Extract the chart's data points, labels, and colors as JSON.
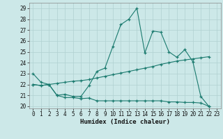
{
  "title": "",
  "xlabel": "Humidex (Indice chaleur)",
  "ylabel": "",
  "xlim": [
    -0.5,
    23.5
  ],
  "ylim": [
    19.8,
    29.5
  ],
  "yticks": [
    20,
    21,
    22,
    23,
    24,
    25,
    26,
    27,
    28,
    29
  ],
  "xticks": [
    0,
    1,
    2,
    3,
    4,
    5,
    6,
    7,
    8,
    9,
    10,
    11,
    12,
    13,
    14,
    15,
    16,
    17,
    18,
    19,
    20,
    21,
    22,
    23
  ],
  "bg_color": "#cce8e8",
  "line_color": "#1a7a6e",
  "grid_color": "#b0d0d0",
  "line1_x": [
    0,
    1,
    2,
    3,
    4,
    5,
    6,
    7,
    8,
    9,
    10,
    11,
    12,
    13,
    14,
    15,
    16,
    17,
    18,
    19,
    20,
    21,
    22
  ],
  "line1_y": [
    23.0,
    22.2,
    22.0,
    21.0,
    21.1,
    20.9,
    20.9,
    21.9,
    23.2,
    23.5,
    25.5,
    27.5,
    28.0,
    29.0,
    24.9,
    26.9,
    26.8,
    25.0,
    24.5,
    25.2,
    24.1,
    20.9,
    20.0
  ],
  "line2_x": [
    0,
    1,
    2,
    3,
    4,
    5,
    6,
    7,
    8,
    9,
    10,
    11,
    12,
    13,
    14,
    15,
    16,
    17,
    18,
    19,
    20,
    21,
    22
  ],
  "line2_y": [
    22.0,
    21.9,
    22.0,
    22.1,
    22.2,
    22.3,
    22.35,
    22.45,
    22.6,
    22.75,
    22.9,
    23.05,
    23.2,
    23.35,
    23.5,
    23.65,
    23.85,
    24.0,
    24.15,
    24.25,
    24.35,
    24.45,
    24.55
  ],
  "line3_x": [
    0,
    1,
    2,
    3,
    4,
    5,
    6,
    7,
    8,
    9,
    10,
    11,
    12,
    13,
    14,
    15,
    16,
    17,
    18,
    19,
    20,
    21,
    22
  ],
  "line3_y": [
    22.0,
    21.9,
    22.0,
    21.0,
    20.8,
    20.8,
    20.7,
    20.75,
    20.5,
    20.5,
    20.5,
    20.5,
    20.5,
    20.5,
    20.5,
    20.5,
    20.5,
    20.4,
    20.4,
    20.35,
    20.35,
    20.3,
    20.0
  ],
  "tick_fontsize": 5.5,
  "xlabel_fontsize": 6.5,
  "marker_size": 3.5,
  "line_width": 0.8
}
